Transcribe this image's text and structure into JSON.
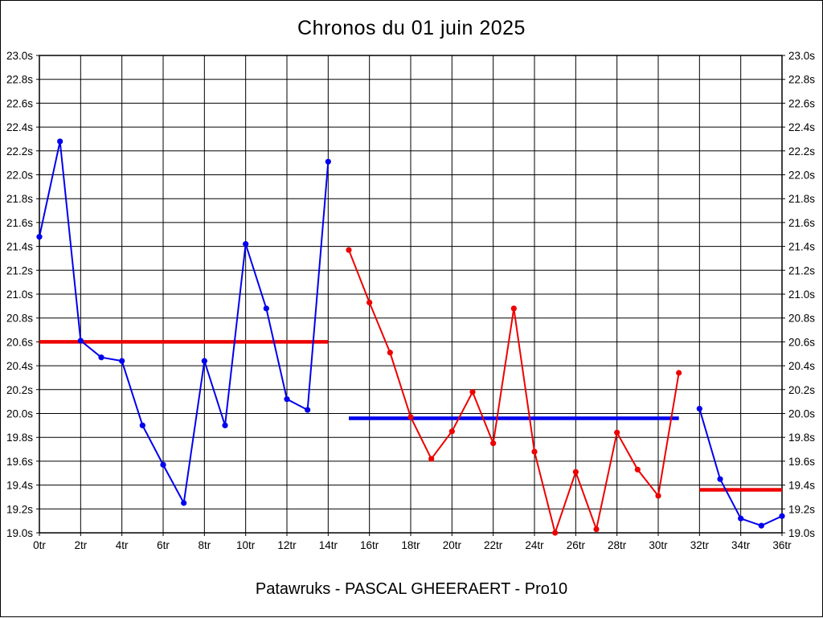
{
  "title": "Chronos du 01 juin 2025",
  "footer": "Patawruks - PASCAL GHEERAERT - Pro10",
  "colors": {
    "series_blue": "#0000ee",
    "series_red": "#ee0000",
    "grid": "#000000",
    "background": "#ffffff",
    "text": "#000000"
  },
  "chart_data": {
    "type": "line",
    "title": "Chronos du 01 juin 2025",
    "xlabel": "",
    "ylabel": "",
    "x_unit_suffix": "tr",
    "y_unit_suffix": "s",
    "xlim": [
      0,
      36
    ],
    "ylim": [
      19.0,
      23.0
    ],
    "x_tick_step": 2,
    "y_tick_step": 0.2,
    "grid": true,
    "legend_position": "none",
    "series": [
      {
        "name": "chronos-segment-1",
        "color": "#0000ee",
        "x": [
          0,
          1,
          2,
          3,
          4,
          5,
          6,
          7,
          8,
          9,
          10,
          11,
          12,
          13,
          14
        ],
        "values": [
          21.48,
          22.28,
          20.61,
          20.47,
          20.44,
          19.9,
          19.57,
          19.25,
          20.44,
          19.9,
          21.42,
          20.88,
          20.12,
          20.03,
          22.11
        ]
      },
      {
        "name": "chronos-segment-2",
        "color": "#ee0000",
        "x": [
          15,
          16,
          17,
          18,
          19,
          20,
          21,
          22,
          23,
          24,
          25,
          26,
          27,
          28,
          29,
          30,
          31
        ],
        "values": [
          21.37,
          20.93,
          20.51,
          19.97,
          19.62,
          19.85,
          20.18,
          19.75,
          20.88,
          19.68,
          19.0,
          19.51,
          19.03,
          19.84,
          19.53,
          19.31,
          20.34
        ]
      },
      {
        "name": "chronos-segment-3",
        "color": "#0000ee",
        "x": [
          32,
          33,
          34,
          35,
          36
        ],
        "values": [
          20.04,
          19.45,
          19.12,
          19.06,
          19.14
        ]
      }
    ],
    "average_lines": [
      {
        "name": "average-segment-1",
        "color": "#ee0000",
        "value": 20.6,
        "x_start": 0,
        "x_end": 14
      },
      {
        "name": "average-segment-2",
        "color": "#0000ee",
        "value": 19.96,
        "x_start": 15,
        "x_end": 31
      },
      {
        "name": "average-segment-3",
        "color": "#ee0000",
        "value": 19.36,
        "x_start": 32,
        "x_end": 36
      }
    ]
  }
}
